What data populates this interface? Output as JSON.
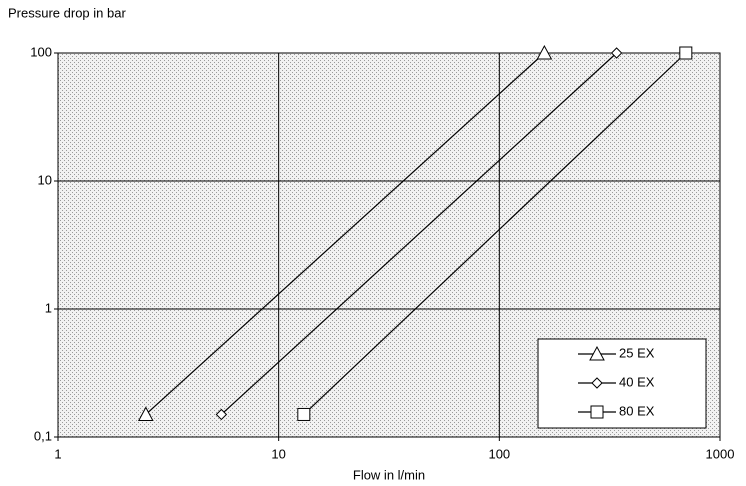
{
  "chart_data": {
    "type": "line",
    "title": "Pressure drop in bar",
    "x_label": "Flow in l/min",
    "xscale": "log",
    "yscale": "log",
    "xlim": [
      1,
      1000
    ],
    "ylim": [
      0.1,
      100
    ],
    "xticks": [
      1,
      10,
      100,
      1000
    ],
    "yticks": [
      {
        "value": 0.1,
        "label": "0,1"
      },
      1,
      10,
      100
    ],
    "grid": true,
    "legend": "lower right",
    "series": [
      {
        "name": "25 EX",
        "color": "#000000",
        "marker": "triangle",
        "x": [
          2.5,
          160
        ],
        "values": [
          0.15,
          100
        ]
      },
      {
        "name": "40 EX",
        "color": "#000000",
        "marker": "diamond",
        "x": [
          5.5,
          340
        ],
        "values": [
          0.15,
          100
        ]
      },
      {
        "name": "80 EX",
        "color": "#000000",
        "marker": "square",
        "x": [
          13,
          700
        ],
        "values": [
          0.15,
          100
        ]
      }
    ]
  }
}
